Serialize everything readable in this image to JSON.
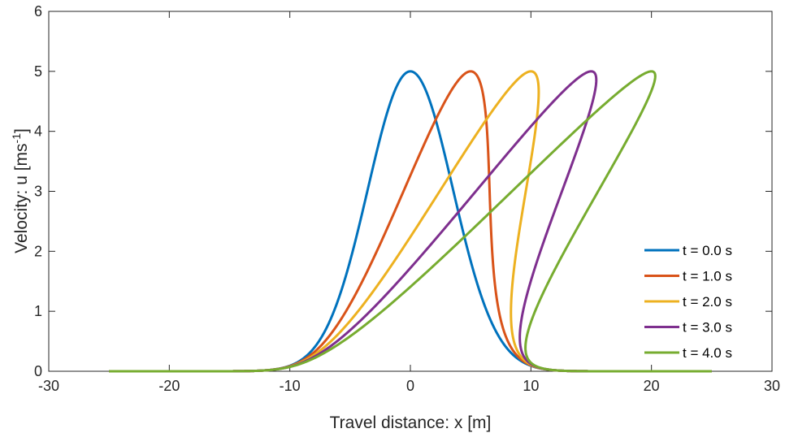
{
  "chart_data": {
    "type": "line",
    "xlabel": "Travel distance: x [m]",
    "ylabel_main": "Velocity: u [ms",
    "ylabel_sup": "-1",
    "ylabel_end": "]",
    "xlim": [
      -30,
      30
    ],
    "ylim": [
      0,
      6
    ],
    "xticks": [
      -30,
      -20,
      -10,
      0,
      10,
      20,
      30
    ],
    "yticks": [
      0,
      1,
      2,
      3,
      4,
      5,
      6
    ],
    "xtick_labels": [
      "-30",
      "-20",
      "-10",
      "0",
      "10",
      "20",
      "30"
    ],
    "ytick_labels": [
      "0",
      "1",
      "2",
      "3",
      "4",
      "5",
      "6"
    ],
    "grid": false,
    "legend_position": "bottom-right",
    "profile": {
      "description_of_initial_condition": "u(x,0) = 5 exp(-(x/5)^2), x from -25 to 25; each series is the initial profile advected as x = x0 + u*t",
      "amplitude": 5,
      "width": 5,
      "x_start": -25,
      "x_end": 25
    },
    "series": [
      {
        "name": "t = 0.0 s",
        "t": 0,
        "color": "#0072BD"
      },
      {
        "name": "t = 1.0 s",
        "t": 1,
        "color": "#D95319"
      },
      {
        "name": "t = 2.0 s",
        "t": 2,
        "color": "#EDB120"
      },
      {
        "name": "t = 3.0 s",
        "t": 3,
        "color": "#7E2F8E"
      },
      {
        "name": "t = 4.0 s",
        "t": 4,
        "color": "#77AC30"
      }
    ]
  }
}
